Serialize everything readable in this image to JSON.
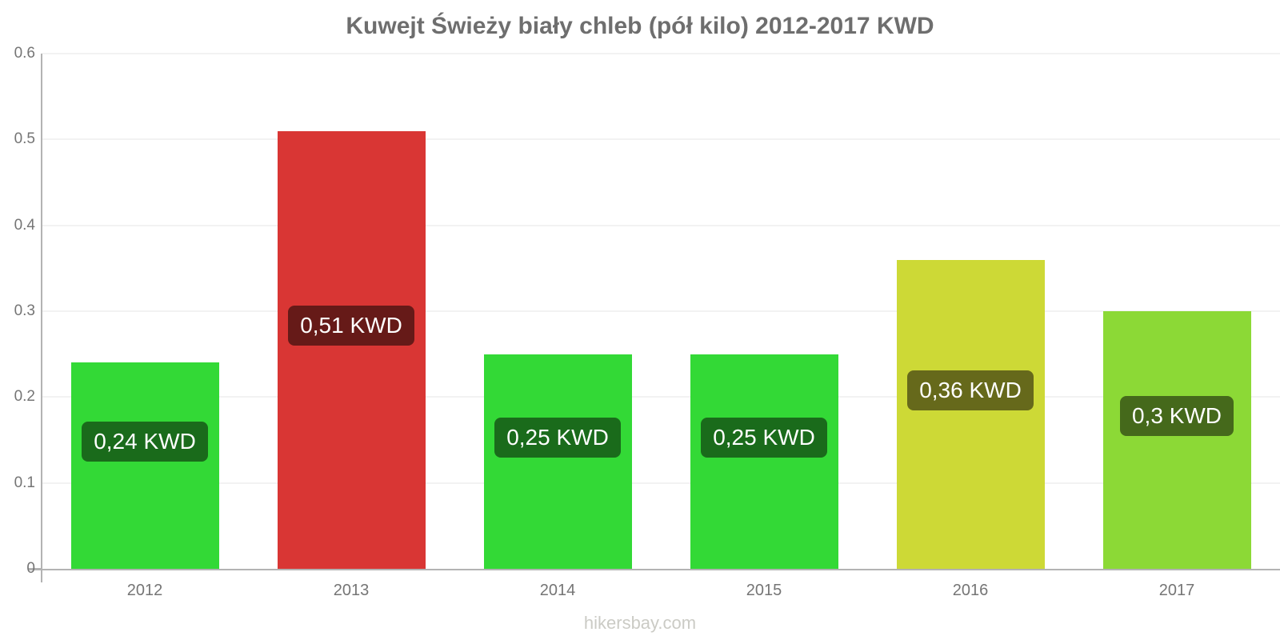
{
  "footer": "hikersbay.com",
  "chart_data": {
    "type": "bar",
    "title": "Kuwejt Świeży biały chleb (pół kilo) 2012-2017 KWD",
    "currency": "KWD",
    "categories": [
      "2012",
      "2013",
      "2014",
      "2015",
      "2016",
      "2017"
    ],
    "values": [
      0.24,
      0.51,
      0.25,
      0.25,
      0.36,
      0.3
    ],
    "bar_labels": [
      "0,24 KWD",
      "0,51 KWD",
      "0,25 KWD",
      "0,25 KWD",
      "0,36 KWD",
      "0,3 KWD"
    ],
    "bar_colors": [
      "#33d936",
      "#d93634",
      "#33d936",
      "#33d936",
      "#cdd936",
      "#8cd936"
    ],
    "label_bg_colors": [
      "#1a6b1b",
      "#661a18",
      "#1a6b1b",
      "#1a6b1b",
      "#66691b",
      "#45691b"
    ],
    "xlabel": "",
    "ylabel": "",
    "ylim": [
      0,
      0.6
    ],
    "yticks": [
      0.6,
      0.5,
      0.4,
      0.3,
      0.2,
      0.1,
      0
    ],
    "ytick_labels": [
      "0.6",
      "0.5",
      "0.4",
      "0.3",
      "0.2",
      "0.1",
      "0"
    ],
    "grid": true,
    "legend": false
  },
  "colors": {
    "background": "#ffffff",
    "axis": "#b3b3b3",
    "gridline": "#f2f2f2",
    "title_text": "#6e6e6e",
    "tick_text": "#757575",
    "value_text": "#ffffff",
    "footer_text": "#cbcbc5"
  }
}
